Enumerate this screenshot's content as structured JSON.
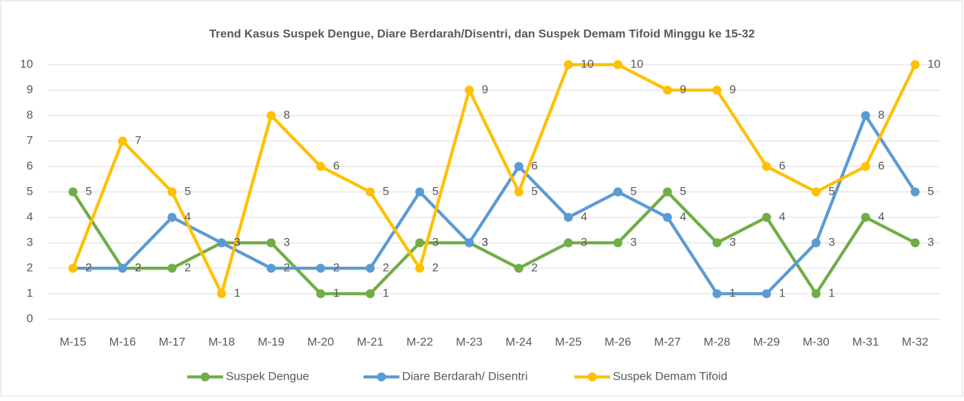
{
  "chart_data": {
    "type": "line",
    "title": "Trend Kasus Suspek Dengue, Diare Berdarah/Disentri, dan Suspek Demam Tifoid Minggu ke 15-32",
    "categories": [
      "M-15",
      "M-16",
      "M-17",
      "M-18",
      "M-19",
      "M-20",
      "M-21",
      "M-22",
      "M-23",
      "M-24",
      "M-25",
      "M-26",
      "M-27",
      "M-28",
      "M-29",
      "M-30",
      "M-31",
      "M-32"
    ],
    "series": [
      {
        "name": "Suspek Dengue",
        "color": "#70ad47",
        "values": [
          5,
          2,
          2,
          3,
          3,
          1,
          1,
          3,
          3,
          2,
          3,
          3,
          5,
          3,
          4,
          1,
          4,
          3
        ]
      },
      {
        "name": "Diare Berdarah/ Disentri",
        "color": "#5b9bd5",
        "values": [
          2,
          2,
          4,
          3,
          2,
          2,
          2,
          5,
          3,
          6,
          4,
          5,
          4,
          1,
          1,
          3,
          8,
          5
        ]
      },
      {
        "name": "Suspek Demam Tifoid",
        "color": "#ffc000",
        "values": [
          2,
          7,
          5,
          1,
          8,
          6,
          5,
          2,
          9,
          5,
          10,
          10,
          9,
          9,
          6,
          5,
          6,
          10
        ]
      }
    ],
    "ylim": [
      0,
      10
    ],
    "yticks": [
      0,
      1,
      2,
      3,
      4,
      5,
      6,
      7,
      8,
      9,
      10
    ],
    "grid": true,
    "legend": "bottom"
  }
}
